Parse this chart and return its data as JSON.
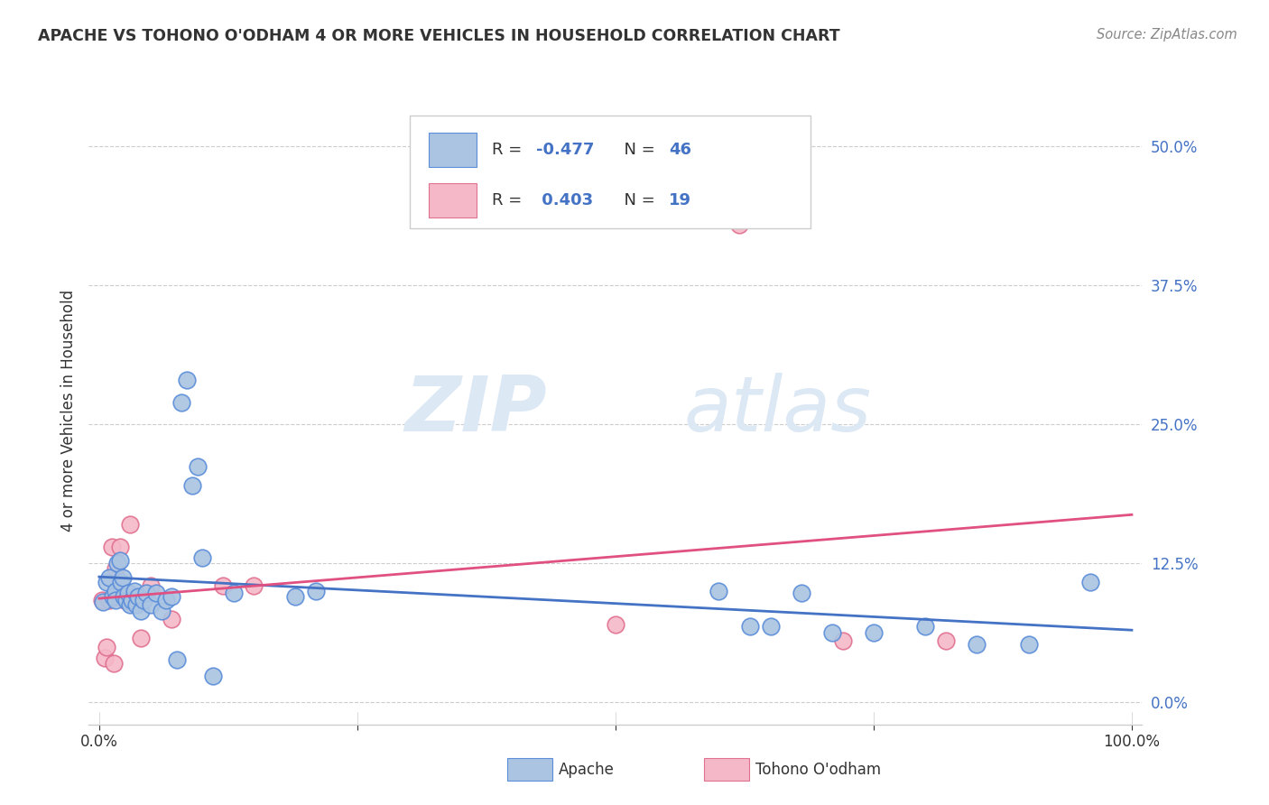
{
  "title": "APACHE VS TOHONO O'ODHAM 4 OR MORE VEHICLES IN HOUSEHOLD CORRELATION CHART",
  "source": "Source: ZipAtlas.com",
  "ylabel": "4 or more Vehicles in Household",
  "apache_R": -0.477,
  "apache_N": 46,
  "tohono_R": 0.403,
  "tohono_N": 19,
  "xlim": [
    -0.01,
    1.01
  ],
  "ylim": [
    -0.02,
    0.545
  ],
  "yticks": [
    0.0,
    0.125,
    0.25,
    0.375,
    0.5
  ],
  "ytick_labels": [
    "0.0%",
    "12.5%",
    "25.0%",
    "37.5%",
    "50.0%"
  ],
  "xticks": [
    0.0,
    0.25,
    0.5,
    0.75,
    1.0
  ],
  "xtick_labels": [
    "0.0%",
    "",
    "",
    "",
    "100.0%"
  ],
  "apache_color": "#aac4e2",
  "apache_edge_color": "#5b8dd9",
  "apache_line_color": "#4472c4",
  "tohono_color": "#f5b8c8",
  "tohono_edge_color": "#e07090",
  "tohono_line_color": "#e05080",
  "text_color": "#333333",
  "blue_label_color": "#4472c4",
  "grid_color": "#cccccc",
  "background_color": "#ffffff",
  "watermark_zip": "ZIP",
  "watermark_atlas": "atlas",
  "legend_labels": [
    "Apache",
    "Tohono O'odham"
  ],
  "apache_x": [
    0.004,
    0.007,
    0.01,
    0.013,
    0.016,
    0.016,
    0.018,
    0.02,
    0.021,
    0.023,
    0.024,
    0.026,
    0.028,
    0.03,
    0.032,
    0.034,
    0.036,
    0.038,
    0.04,
    0.043,
    0.046,
    0.05,
    0.055,
    0.06,
    0.065,
    0.07,
    0.075,
    0.08,
    0.085,
    0.09,
    0.095,
    0.1,
    0.11,
    0.13,
    0.19,
    0.21,
    0.6,
    0.63,
    0.65,
    0.68,
    0.71,
    0.75,
    0.8,
    0.85,
    0.9,
    0.96
  ],
  "apache_y": [
    0.09,
    0.108,
    0.112,
    0.095,
    0.1,
    0.092,
    0.125,
    0.128,
    0.108,
    0.112,
    0.095,
    0.092,
    0.098,
    0.088,
    0.092,
    0.1,
    0.088,
    0.095,
    0.082,
    0.092,
    0.098,
    0.088,
    0.098,
    0.082,
    0.092,
    0.095,
    0.038,
    0.27,
    0.29,
    0.195,
    0.212,
    0.13,
    0.024,
    0.098,
    0.095,
    0.1,
    0.1,
    0.068,
    0.068,
    0.098,
    0.063,
    0.063,
    0.068,
    0.052,
    0.052,
    0.108
  ],
  "tohono_x": [
    0.003,
    0.005,
    0.007,
    0.01,
    0.012,
    0.014,
    0.016,
    0.02,
    0.025,
    0.03,
    0.04,
    0.05,
    0.07,
    0.12,
    0.15,
    0.5,
    0.62,
    0.72,
    0.82
  ],
  "tohono_y": [
    0.092,
    0.04,
    0.05,
    0.092,
    0.14,
    0.035,
    0.12,
    0.14,
    0.092,
    0.16,
    0.058,
    0.105,
    0.075,
    0.105,
    0.105,
    0.07,
    0.43,
    0.055,
    0.055
  ]
}
